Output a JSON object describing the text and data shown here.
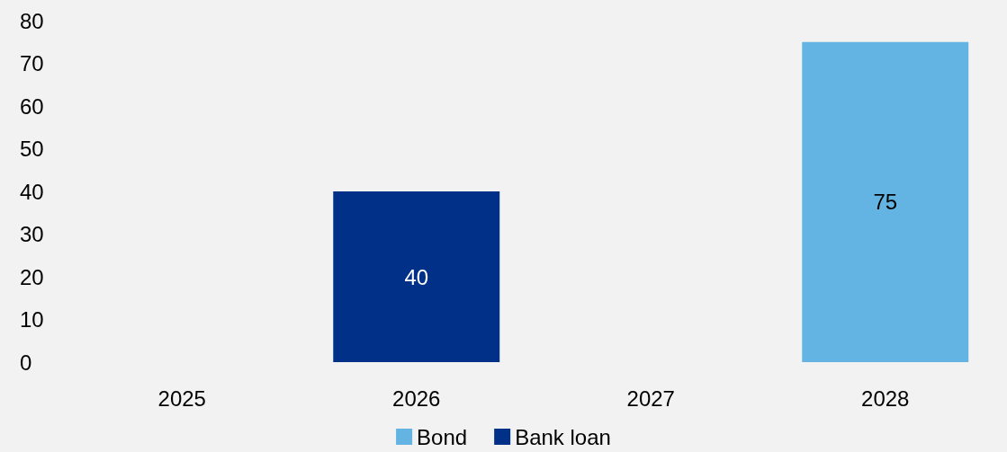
{
  "chart_data": {
    "type": "bar",
    "categories": [
      "2025",
      "2026",
      "2027",
      "2028"
    ],
    "stacked": true,
    "data_labels": true,
    "legend": "bottom",
    "grid": false,
    "ylim": [
      0,
      80
    ],
    "yticks": [
      0,
      10,
      20,
      30,
      40,
      50,
      60,
      70,
      80
    ],
    "series": [
      {
        "name": "Bond",
        "color": "#63b3e3",
        "values": [
          null,
          null,
          null,
          75
        ]
      },
      {
        "name": "Bank loan",
        "color": "#003087",
        "values": [
          null,
          40,
          null,
          null
        ]
      }
    ]
  }
}
